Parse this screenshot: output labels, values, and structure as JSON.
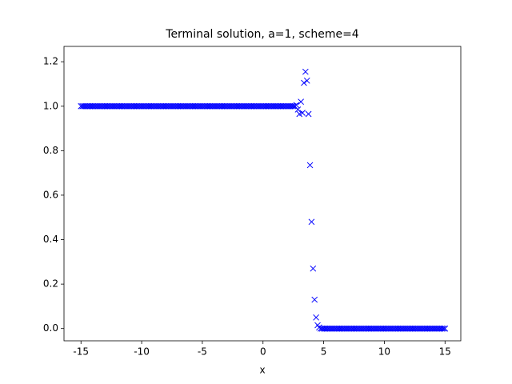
{
  "chart_data": {
    "type": "scatter",
    "title": "Terminal solution, a=1, scheme=4",
    "xlabel": "x",
    "marker": "x",
    "color": "#0000ff",
    "xlim": [
      -16.4,
      16.3
    ],
    "ylim": [
      -0.055,
      1.269
    ],
    "xticks": [
      -15,
      -10,
      -5,
      0,
      5,
      10,
      15
    ],
    "yticks": [
      {
        "value": 0,
        "label": "0.0"
      },
      {
        "value": 0.2,
        "label": "0.2"
      },
      {
        "value": 0.4,
        "label": "0.4"
      },
      {
        "value": 0.6,
        "label": "0.6"
      },
      {
        "value": 0.8,
        "label": "0.8"
      },
      {
        "value": 1,
        "label": "1.0"
      },
      {
        "value": 1.2,
        "label": "1.2"
      }
    ],
    "x": [
      -15,
      -14.875,
      -14.75,
      -14.625,
      -14.5,
      -14.375,
      -14.25,
      -14.125,
      -14,
      -13.875,
      -13.75,
      -13.625,
      -13.5,
      -13.375,
      -13.25,
      -13.125,
      -13,
      -12.875,
      -12.75,
      -12.625,
      -12.5,
      -12.375,
      -12.25,
      -12.125,
      -12,
      -11.875,
      -11.75,
      -11.625,
      -11.5,
      -11.375,
      -11.25,
      -11.125,
      -11,
      -10.875,
      -10.75,
      -10.625,
      -10.5,
      -10.375,
      -10.25,
      -10.125,
      -10,
      -9.875,
      -9.75,
      -9.625,
      -9.5,
      -9.375,
      -9.25,
      -9.125,
      -9,
      -8.875,
      -8.75,
      -8.625,
      -8.5,
      -8.375,
      -8.25,
      -8.125,
      -8,
      -7.875,
      -7.75,
      -7.625,
      -7.5,
      -7.375,
      -7.25,
      -7.125,
      -7,
      -6.875,
      -6.75,
      -6.625,
      -6.5,
      -6.375,
      -6.25,
      -6.125,
      -6,
      -5.875,
      -5.75,
      -5.625,
      -5.5,
      -5.375,
      -5.25,
      -5.125,
      -5,
      -4.875,
      -4.75,
      -4.625,
      -4.5,
      -4.375,
      -4.25,
      -4.125,
      -4,
      -3.875,
      -3.75,
      -3.625,
      -3.5,
      -3.375,
      -3.25,
      -3.125,
      -3,
      -2.875,
      -2.75,
      -2.625,
      -2.5,
      -2.375,
      -2.25,
      -2.125,
      -2,
      -1.875,
      -1.75,
      -1.625,
      -1.5,
      -1.375,
      -1.25,
      -1.125,
      -1,
      -0.875,
      -0.75,
      -0.625,
      -0.5,
      -0.375,
      -0.25,
      -0.125,
      0,
      0.125,
      0.25,
      0.375,
      0.5,
      0.625,
      0.75,
      0.875,
      1,
      1.125,
      1.25,
      1.375,
      1.5,
      1.625,
      1.75,
      1.875,
      2,
      2.125,
      2.25,
      2.375,
      2.5,
      2.625,
      2.75,
      2.875,
      3,
      3.125,
      3.25,
      3.375,
      3.5,
      3.625,
      3.75,
      3.875,
      4,
      4.125,
      4.25,
      4.375,
      4.5,
      4.625,
      4.75,
      4.875,
      5,
      5.125,
      5.25,
      5.375,
      5.5,
      5.625,
      5.75,
      5.875,
      6,
      6.125,
      6.25,
      6.375,
      6.5,
      6.625,
      6.75,
      6.875,
      7,
      7.125,
      7.25,
      7.375,
      7.5,
      7.625,
      7.75,
      7.875,
      8,
      8.125,
      8.25,
      8.375,
      8.5,
      8.625,
      8.75,
      8.875,
      9,
      9.125,
      9.25,
      9.375,
      9.5,
      9.625,
      9.75,
      9.875,
      10,
      10.125,
      10.25,
      10.375,
      10.5,
      10.625,
      10.75,
      10.875,
      11,
      11.125,
      11.25,
      11.375,
      11.5,
      11.625,
      11.75,
      11.875,
      12,
      12.125,
      12.25,
      12.375,
      12.5,
      12.625,
      12.75,
      12.875,
      13,
      13.125,
      13.25,
      13.375,
      13.5,
      13.625,
      13.75,
      13.875,
      14,
      14.125,
      14.25,
      14.375,
      14.5,
      14.625,
      14.75,
      14.875,
      15
    ],
    "values": [
      1,
      1,
      1,
      1,
      1,
      1,
      1,
      1,
      1,
      1,
      1,
      1,
      1,
      1,
      1,
      1,
      1,
      1,
      1,
      1,
      1,
      1,
      1,
      1,
      1,
      1,
      1,
      1,
      1,
      1,
      1,
      1,
      1,
      1,
      1,
      1,
      1,
      1,
      1,
      1,
      1,
      1,
      1,
      1,
      1,
      1,
      1,
      1,
      1,
      1,
      1,
      1,
      1,
      1,
      1,
      1,
      1,
      1,
      1,
      1,
      1,
      1,
      1,
      1,
      1,
      1,
      1,
      1,
      1,
      1,
      1,
      1,
      1,
      1,
      1,
      1,
      1,
      1,
      1,
      1,
      1,
      1,
      1,
      1,
      1,
      1,
      1,
      1,
      1,
      1,
      1,
      1,
      1,
      1,
      1,
      1,
      1,
      1,
      1,
      1,
      1,
      1,
      1,
      1,
      1,
      1,
      1,
      1,
      1,
      1,
      1,
      1,
      1,
      1,
      1,
      1,
      1,
      1,
      1,
      1,
      1,
      1,
      1,
      1,
      1,
      1,
      1,
      1,
      1,
      1,
      1,
      1,
      1,
      1,
      1,
      1,
      1,
      1,
      1,
      1,
      1,
      1,
      1.005,
      0.985,
      0.965,
      1.02,
      0.97,
      1.105,
      1.155,
      1.115,
      0.965,
      0.735,
      0.48,
      0.27,
      0.13,
      0.05,
      0.015,
      0.005,
      0,
      0,
      0,
      0,
      0,
      0,
      0,
      0,
      0,
      0,
      0,
      0,
      0,
      0,
      0,
      0,
      0,
      0,
      0,
      0,
      0,
      0,
      0,
      0,
      0,
      0,
      0,
      0,
      0,
      0,
      0,
      0,
      0,
      0,
      0,
      0,
      0,
      0,
      0,
      0,
      0,
      0,
      0,
      0,
      0,
      0,
      0,
      0,
      0,
      0,
      0,
      0,
      0,
      0,
      0,
      0,
      0,
      0,
      0,
      0,
      0,
      0,
      0,
      0,
      0,
      0,
      0,
      0,
      0,
      0,
      0,
      0,
      0,
      0,
      0,
      0,
      0,
      0,
      0,
      0,
      0,
      0,
      0
    ]
  }
}
